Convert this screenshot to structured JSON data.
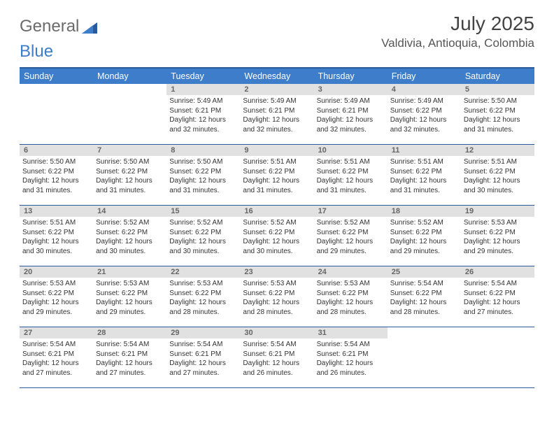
{
  "brand": {
    "part1": "General",
    "part2": "Blue"
  },
  "title": "July 2025",
  "location": "Valdivia, Antioquia, Colombia",
  "colors": {
    "header_bg": "#3d7dca",
    "header_border": "#2a5a99",
    "daynum_bg": "#e1e1e1",
    "logo_gray": "#6b6b6b",
    "title_color": "#444444"
  },
  "weekdays": [
    "Sunday",
    "Monday",
    "Tuesday",
    "Wednesday",
    "Thursday",
    "Friday",
    "Saturday"
  ],
  "grid": [
    [
      {
        "empty": true
      },
      {
        "empty": true
      },
      {
        "n": "1",
        "sr": "5:49 AM",
        "ss": "6:21 PM",
        "dl": "12 hours and 32 minutes."
      },
      {
        "n": "2",
        "sr": "5:49 AM",
        "ss": "6:21 PM",
        "dl": "12 hours and 32 minutes."
      },
      {
        "n": "3",
        "sr": "5:49 AM",
        "ss": "6:21 PM",
        "dl": "12 hours and 32 minutes."
      },
      {
        "n": "4",
        "sr": "5:49 AM",
        "ss": "6:22 PM",
        "dl": "12 hours and 32 minutes."
      },
      {
        "n": "5",
        "sr": "5:50 AM",
        "ss": "6:22 PM",
        "dl": "12 hours and 31 minutes."
      }
    ],
    [
      {
        "n": "6",
        "sr": "5:50 AM",
        "ss": "6:22 PM",
        "dl": "12 hours and 31 minutes."
      },
      {
        "n": "7",
        "sr": "5:50 AM",
        "ss": "6:22 PM",
        "dl": "12 hours and 31 minutes."
      },
      {
        "n": "8",
        "sr": "5:50 AM",
        "ss": "6:22 PM",
        "dl": "12 hours and 31 minutes."
      },
      {
        "n": "9",
        "sr": "5:51 AM",
        "ss": "6:22 PM",
        "dl": "12 hours and 31 minutes."
      },
      {
        "n": "10",
        "sr": "5:51 AM",
        "ss": "6:22 PM",
        "dl": "12 hours and 31 minutes."
      },
      {
        "n": "11",
        "sr": "5:51 AM",
        "ss": "6:22 PM",
        "dl": "12 hours and 31 minutes."
      },
      {
        "n": "12",
        "sr": "5:51 AM",
        "ss": "6:22 PM",
        "dl": "12 hours and 30 minutes."
      }
    ],
    [
      {
        "n": "13",
        "sr": "5:51 AM",
        "ss": "6:22 PM",
        "dl": "12 hours and 30 minutes."
      },
      {
        "n": "14",
        "sr": "5:52 AM",
        "ss": "6:22 PM",
        "dl": "12 hours and 30 minutes."
      },
      {
        "n": "15",
        "sr": "5:52 AM",
        "ss": "6:22 PM",
        "dl": "12 hours and 30 minutes."
      },
      {
        "n": "16",
        "sr": "5:52 AM",
        "ss": "6:22 PM",
        "dl": "12 hours and 30 minutes."
      },
      {
        "n": "17",
        "sr": "5:52 AM",
        "ss": "6:22 PM",
        "dl": "12 hours and 29 minutes."
      },
      {
        "n": "18",
        "sr": "5:52 AM",
        "ss": "6:22 PM",
        "dl": "12 hours and 29 minutes."
      },
      {
        "n": "19",
        "sr": "5:53 AM",
        "ss": "6:22 PM",
        "dl": "12 hours and 29 minutes."
      }
    ],
    [
      {
        "n": "20",
        "sr": "5:53 AM",
        "ss": "6:22 PM",
        "dl": "12 hours and 29 minutes."
      },
      {
        "n": "21",
        "sr": "5:53 AM",
        "ss": "6:22 PM",
        "dl": "12 hours and 29 minutes."
      },
      {
        "n": "22",
        "sr": "5:53 AM",
        "ss": "6:22 PM",
        "dl": "12 hours and 28 minutes."
      },
      {
        "n": "23",
        "sr": "5:53 AM",
        "ss": "6:22 PM",
        "dl": "12 hours and 28 minutes."
      },
      {
        "n": "24",
        "sr": "5:53 AM",
        "ss": "6:22 PM",
        "dl": "12 hours and 28 minutes."
      },
      {
        "n": "25",
        "sr": "5:54 AM",
        "ss": "6:22 PM",
        "dl": "12 hours and 28 minutes."
      },
      {
        "n": "26",
        "sr": "5:54 AM",
        "ss": "6:22 PM",
        "dl": "12 hours and 27 minutes."
      }
    ],
    [
      {
        "n": "27",
        "sr": "5:54 AM",
        "ss": "6:21 PM",
        "dl": "12 hours and 27 minutes."
      },
      {
        "n": "28",
        "sr": "5:54 AM",
        "ss": "6:21 PM",
        "dl": "12 hours and 27 minutes."
      },
      {
        "n": "29",
        "sr": "5:54 AM",
        "ss": "6:21 PM",
        "dl": "12 hours and 27 minutes."
      },
      {
        "n": "30",
        "sr": "5:54 AM",
        "ss": "6:21 PM",
        "dl": "12 hours and 26 minutes."
      },
      {
        "n": "31",
        "sr": "5:54 AM",
        "ss": "6:21 PM",
        "dl": "12 hours and 26 minutes."
      },
      {
        "empty": true
      },
      {
        "empty": true
      }
    ]
  ],
  "labels": {
    "sunrise": "Sunrise:",
    "sunset": "Sunset:",
    "daylight": "Daylight:"
  }
}
